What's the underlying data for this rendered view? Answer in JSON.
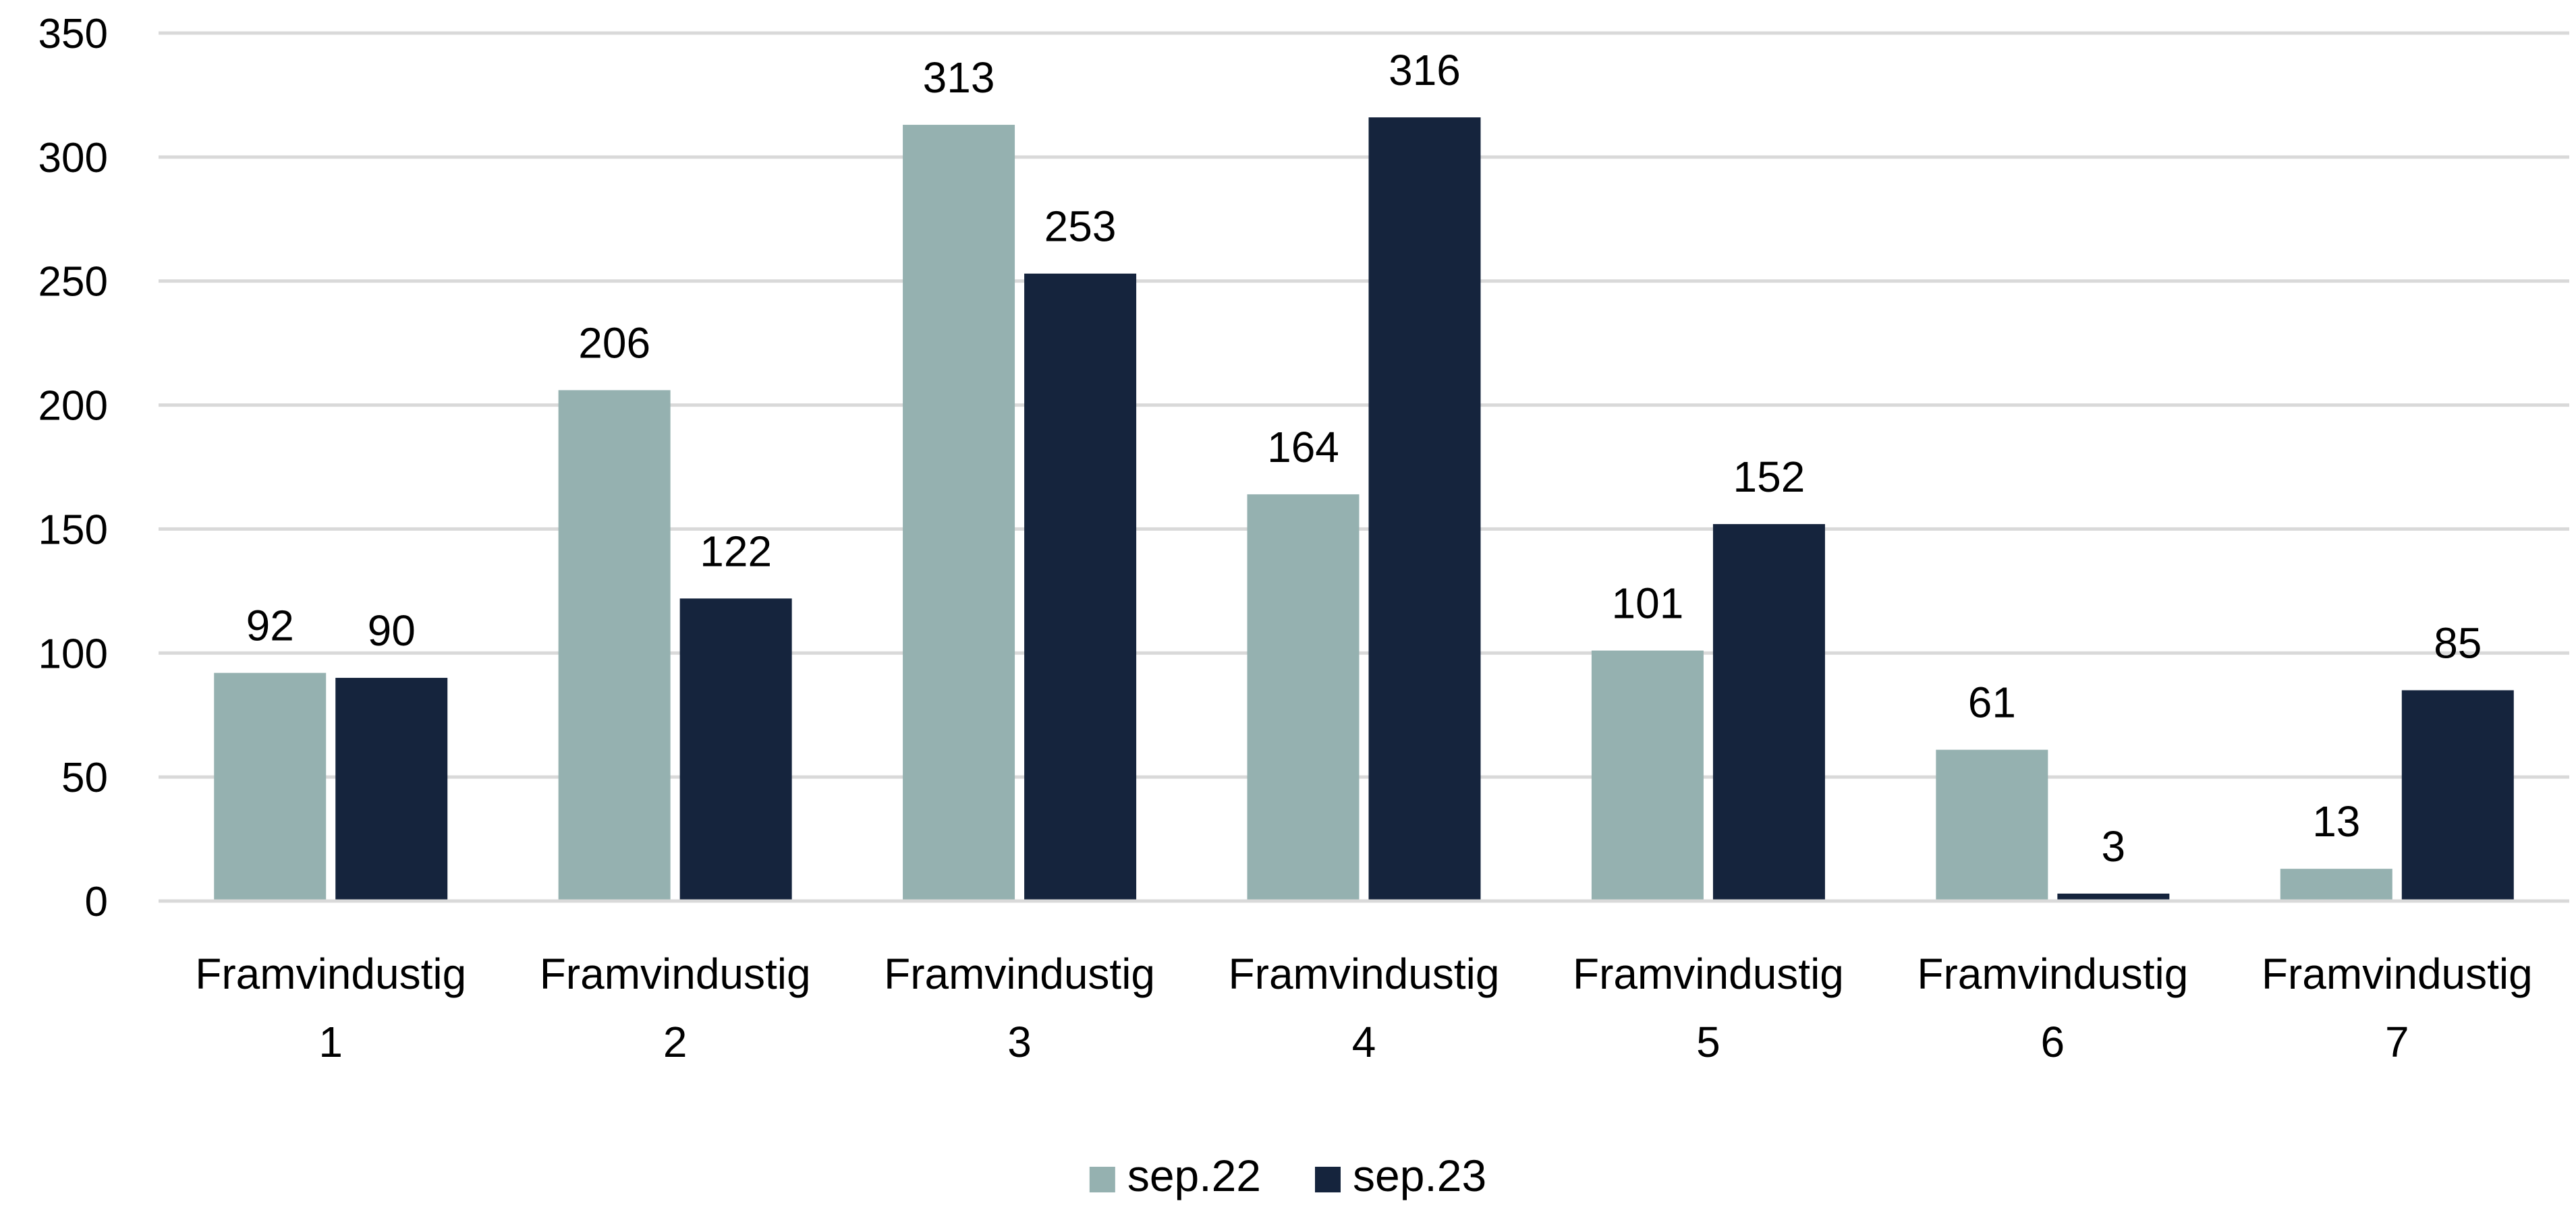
{
  "chart_data": {
    "type": "bar",
    "categories": [
      [
        "Framvindustig",
        "1"
      ],
      [
        "Framvindustig",
        "2"
      ],
      [
        "Framvindustig",
        "3"
      ],
      [
        "Framvindustig",
        "4"
      ],
      [
        "Framvindustig",
        "5"
      ],
      [
        "Framvindustig",
        "6"
      ],
      [
        "Framvindustig",
        "7"
      ]
    ],
    "series": [
      {
        "name": "sep.22",
        "color": "#95b1b0",
        "values": [
          92,
          206,
          313,
          164,
          101,
          61,
          13
        ]
      },
      {
        "name": "sep.23",
        "color": "#15243d",
        "values": [
          90,
          122,
          253,
          316,
          152,
          3,
          85
        ]
      }
    ],
    "title": "",
    "xlabel": "",
    "ylabel": "",
    "ylim": [
      0,
      350
    ],
    "yticks": [
      0,
      50,
      100,
      150,
      200,
      250,
      300,
      350
    ],
    "grid": true,
    "gridColor": "#d9d9d9",
    "legend": "bottom-center"
  }
}
